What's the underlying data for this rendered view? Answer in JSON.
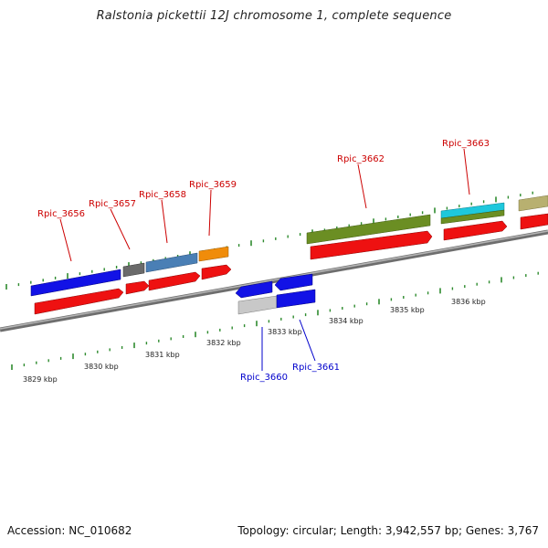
{
  "title": "Ralstonia pickettii 12J chromosome 1, complete sequence",
  "footer": {
    "accession": "Accession: NC_010682",
    "summary": "Topology: circular; Length: 3,942,557 bp; Genes: 3,767"
  },
  "scale_labels": [
    "3829 kbp",
    "3830 kbp",
    "3831 kbp",
    "3832 kbp",
    "3833 kbp",
    "3834 kbp",
    "3835 kbp",
    "3836 kbp"
  ],
  "genes": [
    {
      "label": "Rpic_3656",
      "color": "#cc0000"
    },
    {
      "label": "Rpic_3657",
      "color": "#cc0000"
    },
    {
      "label": "Rpic_3658",
      "color": "#cc0000"
    },
    {
      "label": "Rpic_3659",
      "color": "#cc0000"
    },
    {
      "label": "Rpic_3660",
      "color": "#0000cc"
    },
    {
      "label": "Rpic_3661",
      "color": "#0000cc"
    },
    {
      "label": "Rpic_3662",
      "color": "#cc0000"
    },
    {
      "label": "Rpic_3663",
      "color": "#cc0000"
    }
  ],
  "colors": {
    "backbone": "#8a8a8a",
    "tick": "#2e8b2e",
    "cds": "#ee1111",
    "forward_feature": "#1414e0"
  }
}
